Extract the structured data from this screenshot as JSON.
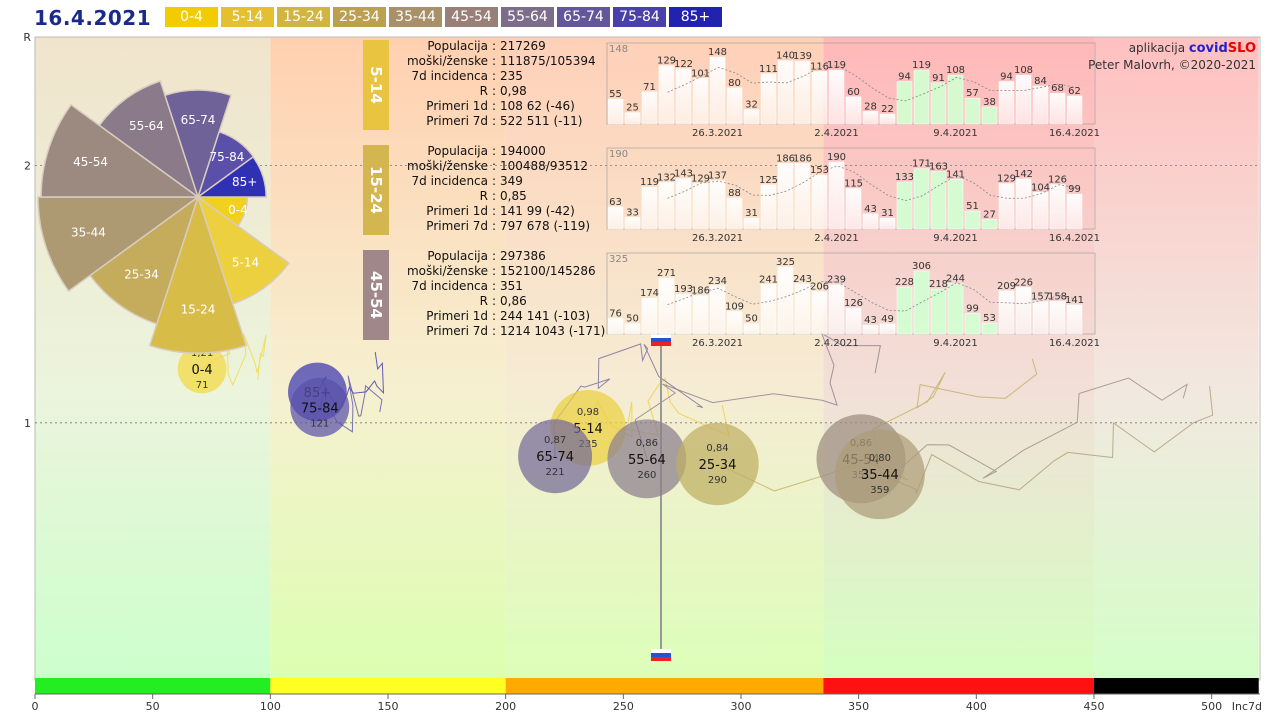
{
  "header": {
    "date": "16.4.2021"
  },
  "legend": [
    {
      "label": "0-4",
      "color": "#f2cc00"
    },
    {
      "label": "5-14",
      "color": "#e4c030"
    },
    {
      "label": "15-24",
      "color": "#d2b440"
    },
    {
      "label": "25-34",
      "color": "#bca050"
    },
    {
      "label": "35-44",
      "color": "#a89068"
    },
    {
      "label": "45-54",
      "color": "#988078"
    },
    {
      "label": "55-64",
      "color": "#7c6e8a"
    },
    {
      "label": "65-74",
      "color": "#64569a"
    },
    {
      "label": "75-84",
      "color": "#4a40aa"
    },
    {
      "label": "85+",
      "color": "#2222b0"
    }
  ],
  "app_credit": {
    "prefix": "aplikacija",
    "brand_a": "covid",
    "brand_b": "SLO",
    "author": "Peter Malovrh, ©2020-2021"
  },
  "panels": [
    {
      "label": "5-14",
      "color": "#e8c440",
      "stats": [
        [
          "Populacija",
          "217269"
        ],
        [
          "moški/ženske",
          "111875/105394"
        ],
        [
          "7d incidenca",
          "235"
        ],
        [
          "R",
          "0,98"
        ],
        [
          "Primeri 1d",
          "108 62 (-46)"
        ],
        [
          "Primeri 7d",
          "522 511 (-11)"
        ]
      ],
      "bars": [
        55,
        25,
        71,
        129,
        122,
        101,
        148,
        80,
        32,
        111,
        140,
        139,
        116,
        119,
        60,
        28,
        22,
        94,
        119,
        91,
        108,
        57,
        38,
        94,
        108,
        84,
        68,
        62
      ],
      "max_label": "148",
      "dates": [
        "26.3.2021",
        "2.4.2021",
        "9.4.2021",
        "16.4.2021"
      ]
    },
    {
      "label": "15-24",
      "color": "#d4b650",
      "stats": [
        [
          "Populacija",
          "194000"
        ],
        [
          "moški/ženske",
          "100488/93512"
        ],
        [
          "7d incidenca",
          "349"
        ],
        [
          "R",
          "0,85"
        ],
        [
          "Primeri 1d",
          "141 99 (-42)"
        ],
        [
          "Primeri 7d",
          "797 678 (-119)"
        ]
      ],
      "bars": [
        63,
        33,
        119,
        132,
        143,
        129,
        137,
        88,
        31,
        125,
        186,
        186,
        153,
        190,
        115,
        43,
        31,
        133,
        171,
        163,
        141,
        51,
        27,
        129,
        142,
        104,
        126,
        99
      ],
      "max_label": "190",
      "dates": [
        "26.3.2021",
        "2.4.2021",
        "9.4.2021",
        "16.4.2021"
      ]
    },
    {
      "label": "45-54",
      "color": "#a0888a",
      "stats": [
        [
          "Populacija",
          "297386"
        ],
        [
          "moški/ženske",
          "152100/145286"
        ],
        [
          "7d incidenca",
          "351"
        ],
        [
          "R",
          "0,86"
        ],
        [
          "Primeri 1d",
          "244 141 (-103)"
        ],
        [
          "Primeri 7d",
          "1214 1043 (-171)"
        ]
      ],
      "bars": [
        76,
        50,
        174,
        271,
        193,
        186,
        234,
        109,
        50,
        241,
        325,
        243,
        206,
        239,
        126,
        43,
        49,
        228,
        306,
        218,
        244,
        99,
        53,
        209,
        226,
        157,
        158,
        141
      ],
      "max_label": "325",
      "dates": [
        "26.3.2021",
        "2.4.2021",
        "9.4.2021",
        "16.4.2021"
      ]
    }
  ],
  "chart_data": [
    {
      "type": "scatter",
      "title": "",
      "xlabel": "Inc7d",
      "ylabel": "R",
      "xlim": [
        0,
        520
      ],
      "ylim": [
        0,
        2.5
      ],
      "xticks": [
        0,
        50,
        100,
        150,
        200,
        250,
        300,
        350,
        400,
        450,
        500
      ],
      "yticks": [
        {
          "v": 1,
          "label": "1"
        },
        {
          "v": 2,
          "label": "2"
        },
        {
          "v": 2.5,
          "label": "R"
        }
      ],
      "zones": [
        {
          "from": 0,
          "to": 100,
          "color": "#22ee22"
        },
        {
          "from": 100,
          "to": 200,
          "color": "#ffff22"
        },
        {
          "from": 200,
          "to": 335,
          "color": "#ffaa00"
        },
        {
          "from": 335,
          "to": 450,
          "color": "#ff1111"
        },
        {
          "from": 450,
          "to": 520,
          "color": "#000000"
        }
      ],
      "country_inc": 266,
      "points": [
        {
          "group": "0-4",
          "x": 71,
          "y": 1.21,
          "r_label": "1,21",
          "inc_label": "71",
          "color": "#f2d840"
        },
        {
          "group": "85+",
          "x": 120,
          "y": 1.12,
          "r_label": "",
          "inc_label": "",
          "color": "#3a36b0"
        },
        {
          "group": "75-84",
          "x": 121,
          "y": 1.06,
          "r_label": "",
          "inc_label": "121",
          "color": "#5a52aa"
        },
        {
          "group": "5-14",
          "x": 235,
          "y": 0.98,
          "r_label": "0,98",
          "inc_label": "235",
          "color": "#ecd040"
        },
        {
          "group": "65-74",
          "x": 221,
          "y": 0.87,
          "r_label": "0,87",
          "inc_label": "221",
          "color": "#746a98"
        },
        {
          "group": "55-64",
          "x": 260,
          "y": 0.86,
          "r_label": "0,86",
          "inc_label": "260",
          "color": "#8a7e8e"
        },
        {
          "group": "25-34",
          "x": 290,
          "y": 0.84,
          "r_label": "0,84",
          "inc_label": "290",
          "color": "#bfae62"
        },
        {
          "group": "45-54",
          "x": 351,
          "y": 0.86,
          "r_label": "0,86",
          "inc_label": "351",
          "color": "#9c8c80"
        },
        {
          "group": "35-44",
          "x": 359,
          "y": 0.8,
          "r_label": "0,80",
          "inc_label": "359",
          "color": "#ad9c78"
        }
      ]
    },
    {
      "type": "pie",
      "title": "",
      "slices": [
        {
          "label": "0-4",
          "value": 71,
          "color": "#f2d020"
        },
        {
          "label": "5-14",
          "value": 235,
          "color": "#ecd040"
        },
        {
          "label": "15-24",
          "value": 349,
          "color": "#d8bc48"
        },
        {
          "label": "25-34",
          "value": 290,
          "color": "#c4ac5c"
        },
        {
          "label": "35-44",
          "value": 359,
          "color": "#ae9a72"
        },
        {
          "label": "45-54",
          "value": 351,
          "color": "#9c8a80"
        },
        {
          "label": "55-64",
          "value": 260,
          "color": "#8a7a8a"
        },
        {
          "label": "65-74",
          "value": 221,
          "color": "#6e6298"
        },
        {
          "label": "75-84",
          "value": 121,
          "color": "#5a50aa"
        },
        {
          "label": "85+",
          "value": 120,
          "color": "#3030b4"
        }
      ]
    }
  ]
}
